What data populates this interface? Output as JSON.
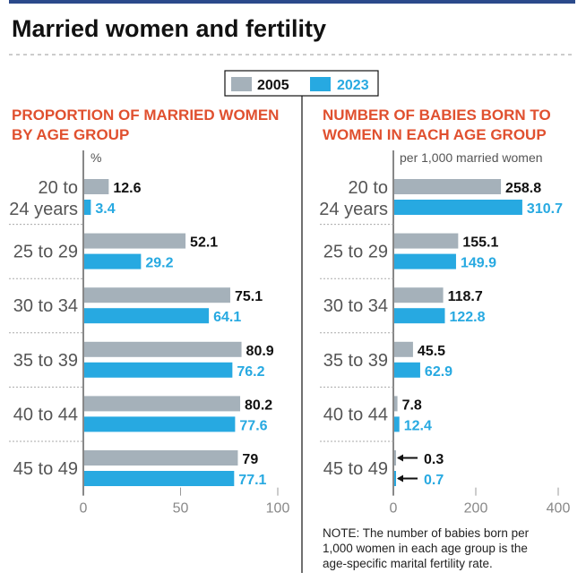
{
  "title": "Married women and fertility",
  "legend": [
    {
      "label": "2005",
      "color": "#a5b1ba",
      "text_color": "#111111"
    },
    {
      "label": "2023",
      "color": "#27a9e1",
      "text_color": "#27a9e1"
    }
  ],
  "chart_data": [
    {
      "type": "bar",
      "orientation": "horizontal",
      "title_line1": "PROPORTION OF MARRIED WOMEN",
      "title_line2": "BY AGE GROUP",
      "unit": "%",
      "categories": [
        [
          "20 to",
          "24 years"
        ],
        [
          "25 to 29"
        ],
        [
          "30 to 34"
        ],
        [
          "35 to 39"
        ],
        [
          "40 to 44"
        ],
        [
          "45 to 49"
        ]
      ],
      "series": [
        {
          "name": "2005",
          "values": [
            12.6,
            52.1,
            75.1,
            80.9,
            80.2,
            79
          ],
          "labels": [
            "12.6",
            "52.1",
            "75.1",
            "80.9",
            "80.2",
            "79"
          ]
        },
        {
          "name": "2023",
          "values": [
            3.4,
            29.2,
            64.1,
            76.2,
            77.6,
            77.1
          ],
          "labels": [
            "3.4",
            "29.2",
            "64.1",
            "76.2",
            "77.6",
            "77.1"
          ]
        }
      ],
      "xlim": [
        0,
        100
      ],
      "ticks": [
        "0",
        "50",
        "100"
      ],
      "tick_values": [
        0,
        50,
        100
      ]
    },
    {
      "type": "bar",
      "orientation": "horizontal",
      "title_line1": "NUMBER OF BABIES BORN TO",
      "title_line2": "WOMEN IN EACH AGE GROUP",
      "unit": "per 1,000 married women",
      "categories": [
        [
          "20 to",
          "24 years"
        ],
        [
          "25 to 29"
        ],
        [
          "30 to 34"
        ],
        [
          "35 to 39"
        ],
        [
          "40 to 44"
        ],
        [
          "45 to 49"
        ]
      ],
      "series": [
        {
          "name": "2005",
          "values": [
            258.8,
            155.1,
            118.7,
            45.5,
            7.8,
            0.3
          ],
          "labels": [
            "258.8",
            "155.1",
            "118.7",
            "45.5",
            "7.8",
            "0.3"
          ]
        },
        {
          "name": "2023",
          "values": [
            310.7,
            149.9,
            122.8,
            62.9,
            12.4,
            0.7
          ],
          "labels": [
            "310.7",
            "149.9",
            "122.8",
            "62.9",
            "12.4",
            "0.7"
          ]
        }
      ],
      "xlim": [
        0,
        400
      ],
      "ticks": [
        "0",
        "200",
        "400"
      ],
      "tick_values": [
        0,
        200,
        400
      ],
      "arrow_annotations_for_last_group": true
    }
  ],
  "note": [
    "NOTE: The number of babies born per",
    "1,000 women in each age group is the",
    "age-specific marital fertility rate."
  ]
}
